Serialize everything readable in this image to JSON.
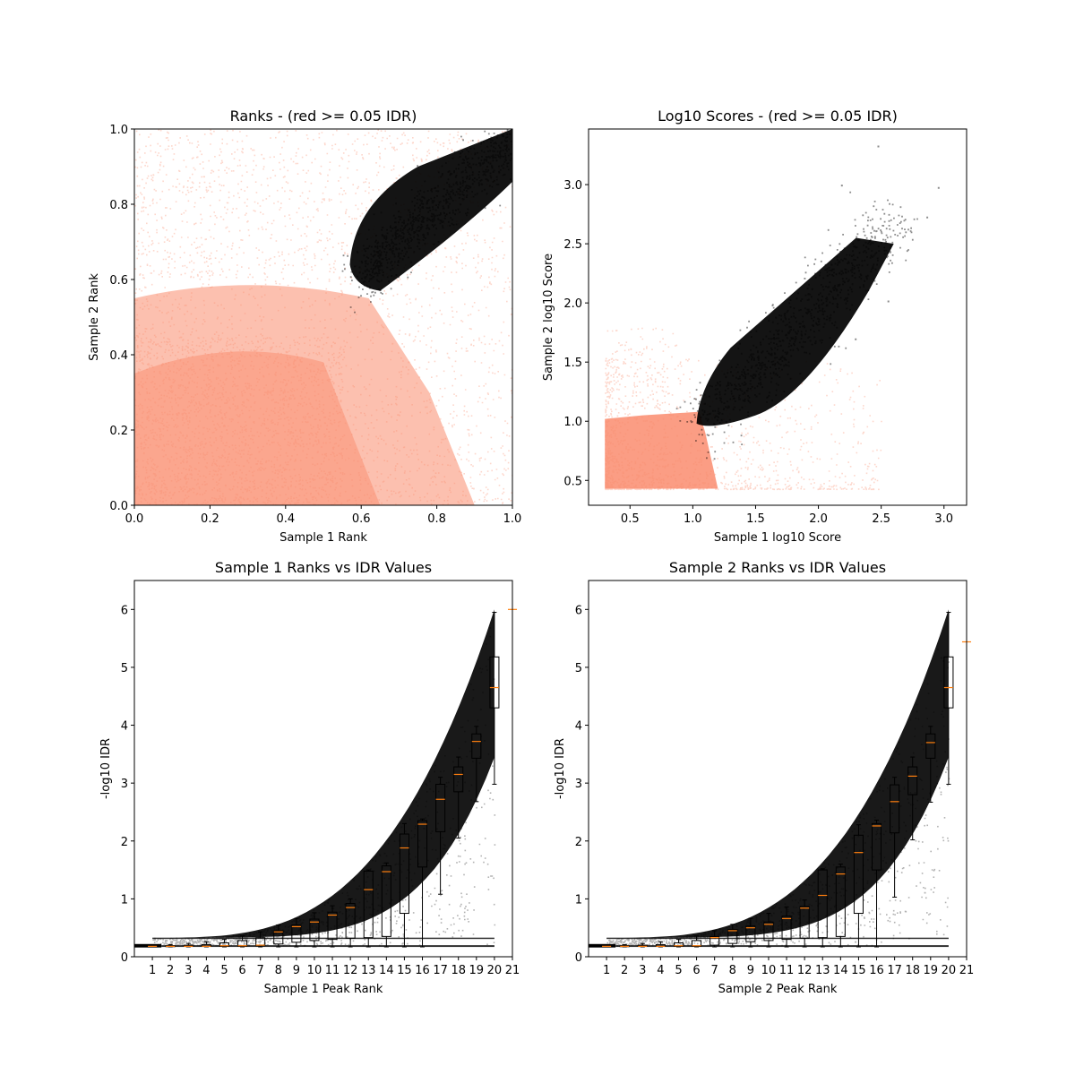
{
  "colors": {
    "below_threshold": "#fa8c6e",
    "above_threshold": "#000000",
    "median": "#ff7f0e",
    "frame": "#000000"
  },
  "chart_data": [
    {
      "type": "scatter",
      "title": "Ranks - (red >= 0.05 IDR)",
      "xlabel": "Sample 1 Rank",
      "ylabel": "Sample 2 Rank",
      "xlim": [
        0,
        1
      ],
      "ylim": [
        0,
        1
      ],
      "xticks": [
        "0.0",
        "0.2",
        "0.4",
        "0.6",
        "0.8",
        "1.0"
      ],
      "yticks": [
        "0.0",
        "0.2",
        "0.4",
        "0.6",
        "0.8",
        "1.0"
      ],
      "grid": false,
      "series": [
        {
          "color": "#fa8c6e",
          "opacity": 0.35,
          "region": "x 0–1, y 0–1, densest in lower-left, thinning toward upper-left and lower-right"
        },
        {
          "color": "#000000",
          "opacity": 0.3,
          "region": "lobe from (0.57, 0.63) with lower edge at y≈0.57 near x=0.65, rising to (1.0, 1.0)"
        }
      ]
    },
    {
      "type": "scatter",
      "title": "Log10 Scores - (red >= 0.05 IDR)",
      "xlabel": "Sample 1 log10 Score",
      "ylabel": "Sample 2 log10 Score",
      "xlim": [
        0.17,
        3.18
      ],
      "ylim": [
        0.29,
        3.47
      ],
      "xticks": [
        "0.5",
        "1.0",
        "1.5",
        "2.0",
        "2.5",
        "3.0"
      ],
      "yticks": [
        "0.5",
        "1.0",
        "1.5",
        "2.0",
        "2.5",
        "3.0"
      ],
      "grid": false,
      "series": [
        {
          "color": "#fa8c6e",
          "opacity": 0.35,
          "region": "dense block x 0.3–1.1, y 0.43–1.0, sparse tail to x≈2.5"
        },
        {
          "color": "#000000",
          "opacity": 0.3,
          "region": "diagonal band from (1.05, 0.95) to (2.6, 2.8), outliers to (2.95, 3.3)"
        }
      ]
    },
    {
      "type": "scatter",
      "title": "Sample 1 Ranks vs IDR Values",
      "xlabel": "Sample 1 Peak Rank",
      "ylabel": "-log10 IDR",
      "xlim": [
        0,
        21
      ],
      "ylim": [
        0,
        6.5
      ],
      "xticks": [
        "1",
        "2",
        "3",
        "4",
        "5",
        "6",
        "7",
        "8",
        "9",
        "10",
        "11",
        "12",
        "13",
        "14",
        "15",
        "16",
        "17",
        "18",
        "19",
        "20",
        "21"
      ],
      "yticks": [
        "0",
        "1",
        "2",
        "3",
        "4",
        "5",
        "6"
      ],
      "grid": false,
      "points_color": "#000000",
      "boxes": {
        "positions": [
          1,
          2,
          3,
          4,
          5,
          6,
          7,
          8,
          9,
          10,
          11,
          12,
          13,
          14,
          15,
          16,
          17,
          18,
          19,
          20
        ],
        "median": [
          0.18,
          0.18,
          0.18,
          0.18,
          0.19,
          0.19,
          0.2,
          0.43,
          0.52,
          0.6,
          0.72,
          0.85,
          1.16,
          1.47,
          1.88,
          2.29,
          2.72,
          3.15,
          3.72,
          4.65
        ],
        "q1": [
          0.18,
          0.18,
          0.18,
          0.18,
          0.18,
          0.18,
          0.19,
          0.22,
          0.25,
          0.28,
          0.3,
          0.32,
          0.33,
          0.35,
          0.75,
          1.55,
          2.16,
          2.85,
          3.43,
          4.3
        ],
        "q3": [
          0.19,
          0.19,
          0.2,
          0.21,
          0.24,
          0.28,
          0.33,
          0.45,
          0.55,
          0.65,
          0.77,
          0.92,
          1.48,
          1.57,
          2.12,
          2.35,
          2.98,
          3.28,
          3.85,
          5.18
        ],
        "whisker_low": [
          0.17,
          0.17,
          0.17,
          0.17,
          0.17,
          0.17,
          0.17,
          0.17,
          0.17,
          0.17,
          0.17,
          0.17,
          0.17,
          0.17,
          0.17,
          0.17,
          1.08,
          2.05,
          2.68,
          2.98
        ],
        "whisker_high": [
          0.2,
          0.21,
          0.23,
          0.26,
          0.3,
          0.36,
          0.43,
          0.55,
          0.66,
          0.76,
          0.88,
          1.0,
          1.5,
          1.62,
          2.3,
          2.38,
          3.1,
          3.45,
          3.98,
          5.95
        ]
      },
      "extra_median": {
        "x": 21,
        "y": 6.0
      }
    },
    {
      "type": "scatter",
      "title": "Sample 2 Ranks vs IDR Values",
      "xlabel": "Sample 2 Peak Rank",
      "ylabel": "-log10 IDR",
      "xlim": [
        0,
        21
      ],
      "ylim": [
        0,
        6.5
      ],
      "xticks": [
        "1",
        "2",
        "3",
        "4",
        "5",
        "6",
        "7",
        "8",
        "9",
        "10",
        "11",
        "12",
        "13",
        "14",
        "15",
        "16",
        "17",
        "18",
        "19",
        "20",
        "21"
      ],
      "yticks": [
        "0",
        "1",
        "2",
        "3",
        "4",
        "5",
        "6"
      ],
      "grid": false,
      "points_color": "#000000",
      "boxes": {
        "positions": [
          1,
          2,
          3,
          4,
          5,
          6,
          7,
          8,
          9,
          10,
          11,
          12,
          13,
          14,
          15,
          16,
          17,
          18,
          19,
          20
        ],
        "median": [
          0.18,
          0.18,
          0.18,
          0.18,
          0.19,
          0.19,
          0.33,
          0.45,
          0.5,
          0.56,
          0.66,
          0.84,
          1.06,
          1.43,
          1.8,
          2.26,
          2.68,
          3.12,
          3.7,
          4.65
        ],
        "q1": [
          0.18,
          0.18,
          0.18,
          0.18,
          0.18,
          0.18,
          0.2,
          0.23,
          0.26,
          0.28,
          0.3,
          0.32,
          0.33,
          0.35,
          0.75,
          1.5,
          2.14,
          2.8,
          3.43,
          4.3
        ],
        "q3": [
          0.19,
          0.19,
          0.2,
          0.21,
          0.24,
          0.28,
          0.35,
          0.47,
          0.53,
          0.6,
          0.7,
          0.87,
          1.5,
          1.55,
          2.1,
          2.3,
          2.97,
          3.28,
          3.85,
          5.18
        ],
        "whisker_low": [
          0.17,
          0.17,
          0.17,
          0.17,
          0.17,
          0.17,
          0.17,
          0.17,
          0.17,
          0.17,
          0.17,
          0.17,
          0.17,
          0.17,
          0.17,
          0.17,
          1.03,
          2.02,
          2.67,
          2.98
        ],
        "whisker_high": [
          0.2,
          0.21,
          0.23,
          0.26,
          0.3,
          0.36,
          0.45,
          0.56,
          0.66,
          0.75,
          0.86,
          0.98,
          1.52,
          1.6,
          2.28,
          2.36,
          3.1,
          3.45,
          3.98,
          5.95
        ]
      },
      "extra_median": {
        "x": 21,
        "y": 5.44
      }
    }
  ]
}
